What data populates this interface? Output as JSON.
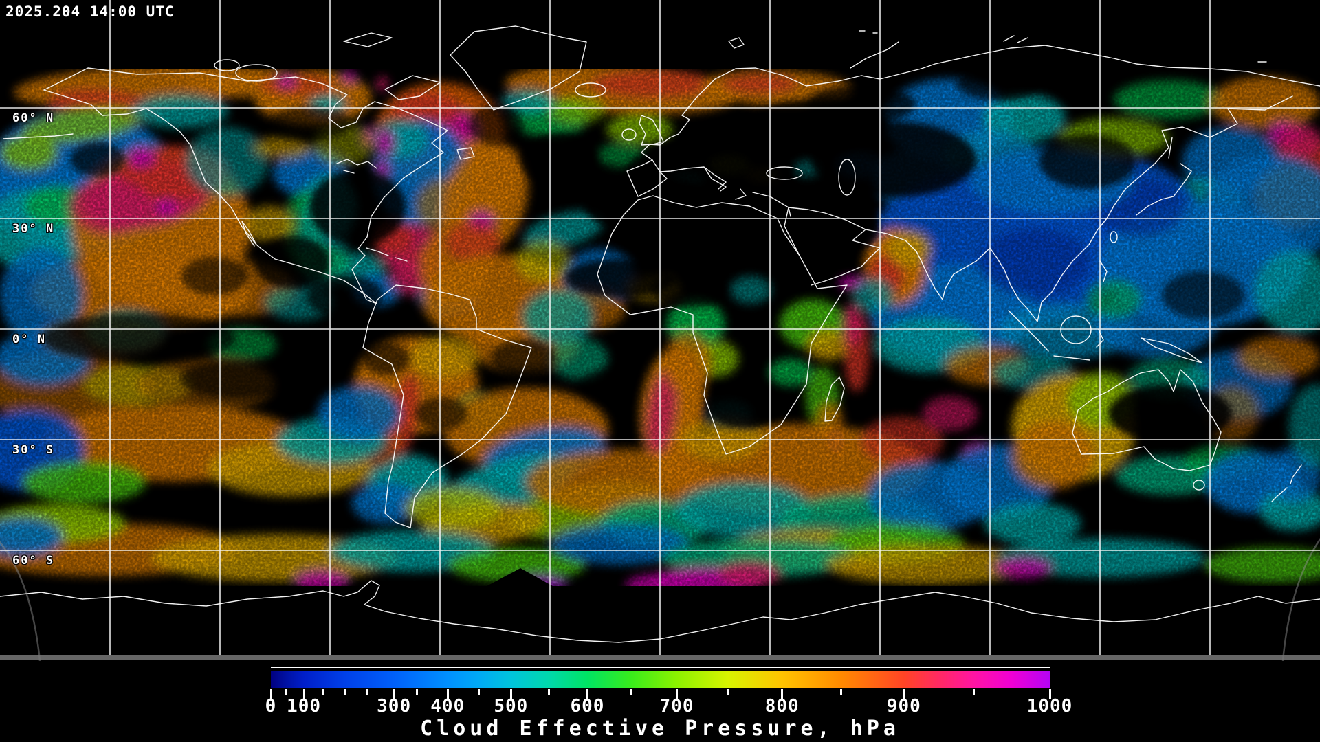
{
  "header": {
    "timestamp": "2025.204 14:00 UTC"
  },
  "map": {
    "latitude_labels": [
      {
        "label": "60° N"
      },
      {
        "label": "30° N"
      },
      {
        "label": "0° N"
      },
      {
        "label": "30° S"
      },
      {
        "label": "60° S"
      }
    ],
    "background_color": "#000000",
    "gridline_color": "#ffffff",
    "coastline_color": "#ffffff"
  },
  "colorbar": {
    "title": "Cloud Effective Pressure, hPa",
    "unit": "hPa",
    "min": 0,
    "max": 1000,
    "tick_interval": 50,
    "scale_type": "nonlinear",
    "ticks": [
      {
        "value": 0,
        "frac": 0.0,
        "labeled": true
      },
      {
        "value": 50,
        "frac": 0.0203,
        "labeled": false
      },
      {
        "value": 100,
        "frac": 0.0424,
        "labeled": true
      },
      {
        "value": 150,
        "frac": 0.0671,
        "labeled": false
      },
      {
        "value": 200,
        "frac": 0.0945,
        "labeled": false
      },
      {
        "value": 250,
        "frac": 0.1237,
        "labeled": false
      },
      {
        "value": 300,
        "frac": 0.1581,
        "labeled": true
      },
      {
        "value": 350,
        "frac": 0.1873,
        "labeled": false
      },
      {
        "value": 400,
        "frac": 0.227,
        "labeled": true
      },
      {
        "value": 450,
        "frac": 0.2668,
        "labeled": false
      },
      {
        "value": 500,
        "frac": 0.3083,
        "labeled": true
      },
      {
        "value": 550,
        "frac": 0.3569,
        "labeled": false
      },
      {
        "value": 600,
        "frac": 0.4064,
        "labeled": true
      },
      {
        "value": 650,
        "frac": 0.462,
        "labeled": false
      },
      {
        "value": 700,
        "frac": 0.5212,
        "labeled": true
      },
      {
        "value": 750,
        "frac": 0.5866,
        "labeled": false
      },
      {
        "value": 800,
        "frac": 0.6564,
        "labeled": true
      },
      {
        "value": 850,
        "frac": 0.7324,
        "labeled": false
      },
      {
        "value": 900,
        "frac": 0.8127,
        "labeled": true
      },
      {
        "value": 950,
        "frac": 0.9028,
        "labeled": false
      },
      {
        "value": 1000,
        "frac": 1.0,
        "labeled": true
      }
    ],
    "gradient": [
      {
        "frac": 0.0,
        "color": "#000080"
      },
      {
        "frac": 0.021,
        "color": "#0012A6"
      },
      {
        "frac": 0.042,
        "color": "#001EC8"
      },
      {
        "frac": 0.095,
        "color": "#0040E8"
      },
      {
        "frac": 0.158,
        "color": "#0060FA"
      },
      {
        "frac": 0.227,
        "color": "#0090FF"
      },
      {
        "frac": 0.267,
        "color": "#00AAF5"
      },
      {
        "frac": 0.308,
        "color": "#00C4DC"
      },
      {
        "frac": 0.357,
        "color": "#00D8AC"
      },
      {
        "frac": 0.406,
        "color": "#00E464"
      },
      {
        "frac": 0.462,
        "color": "#38EC1C"
      },
      {
        "frac": 0.521,
        "color": "#8CF200"
      },
      {
        "frac": 0.587,
        "color": "#D8F400"
      },
      {
        "frac": 0.656,
        "color": "#FFC400"
      },
      {
        "frac": 0.732,
        "color": "#FF8A00"
      },
      {
        "frac": 0.813,
        "color": "#FF4426"
      },
      {
        "frac": 0.86,
        "color": "#FF2866"
      },
      {
        "frac": 0.903,
        "color": "#FF14A4"
      },
      {
        "frac": 0.95,
        "color": "#F000D4"
      },
      {
        "frac": 1.0,
        "color": "#B404F4"
      }
    ]
  }
}
